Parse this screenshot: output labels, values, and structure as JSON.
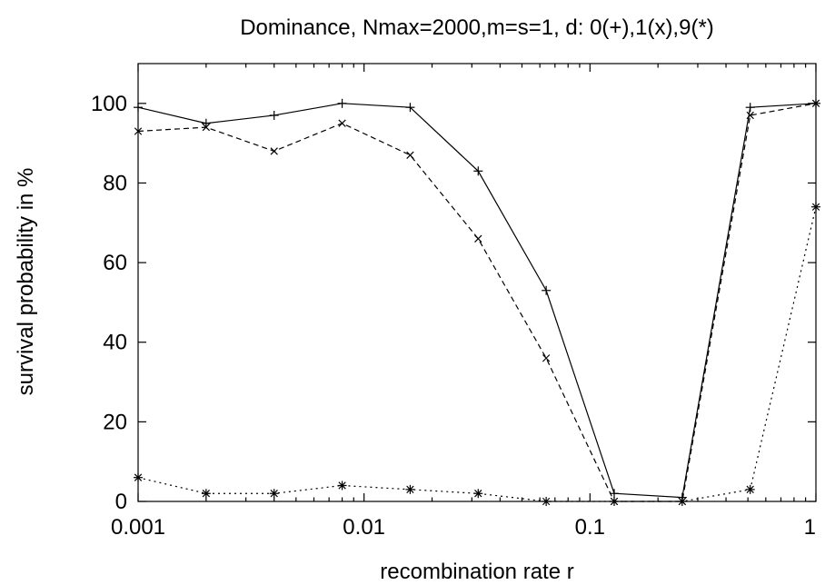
{
  "chart_data": {
    "type": "line",
    "title": "Dominance, Nmax=2000,m=s=1, d: 0(+),1(x),9(*)",
    "xlabel": "recombination rate r",
    "ylabel": "survival probability in %",
    "x_scale": "log",
    "xlim": [
      0.001,
      1
    ],
    "ylim": [
      0,
      110
    ],
    "x_ticks": [
      0.001,
      0.01,
      0.1,
      1
    ],
    "x_tick_labels": [
      "0.001",
      "0.01",
      "0.1",
      "1"
    ],
    "y_ticks": [
      0,
      20,
      40,
      60,
      80,
      100
    ],
    "y_tick_labels": [
      "0",
      "20",
      "40",
      "60",
      "80",
      "100"
    ],
    "grid": false,
    "x": [
      0.001,
      0.002,
      0.004,
      0.008,
      0.016,
      0.032,
      0.064,
      0.128,
      0.256,
      0.512,
      1.0
    ],
    "series": [
      {
        "marker": "+",
        "line_style": "solid",
        "values": [
          99,
          95,
          97,
          100,
          99,
          83,
          53,
          2,
          1,
          99,
          100
        ]
      },
      {
        "marker": "x",
        "line_style": "dashed",
        "values": [
          93,
          94,
          88,
          95,
          87,
          66,
          36,
          0,
          0,
          97,
          100
        ]
      },
      {
        "marker": "*",
        "line_style": "dotted",
        "values": [
          6,
          2,
          2,
          4,
          3,
          2,
          0,
          0,
          0,
          3,
          74
        ]
      }
    ],
    "colors": {
      "line": "#000000",
      "background": "#ffffff"
    }
  }
}
